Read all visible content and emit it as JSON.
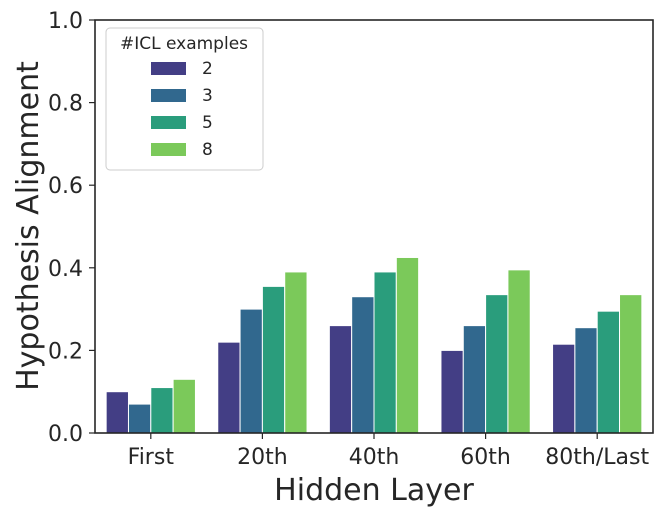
{
  "chart_data": {
    "type": "bar",
    "title": "",
    "xlabel": "Hidden Layer",
    "ylabel": "Hypothesis Alignment",
    "categories": [
      "First",
      "20th",
      "40th",
      "60th",
      "80th/Last"
    ],
    "ylim": [
      0,
      1.0
    ],
    "yticks": [
      "0.0",
      "0.2",
      "0.4",
      "0.6",
      "0.8",
      "1.0"
    ],
    "grid": false,
    "legend": {
      "title": "#ICL examples",
      "placement": "top-left"
    },
    "series": [
      {
        "name": "2",
        "color": "#433e85",
        "values": [
          0.1,
          0.22,
          0.26,
          0.2,
          0.215
        ]
      },
      {
        "name": "3",
        "color": "#31688e",
        "values": [
          0.07,
          0.3,
          0.33,
          0.26,
          0.255
        ]
      },
      {
        "name": "5",
        "color": "#2a9d7c",
        "values": [
          0.11,
          0.355,
          0.39,
          0.335,
          0.295
        ]
      },
      {
        "name": "8",
        "color": "#7bc95a",
        "values": [
          0.13,
          0.39,
          0.425,
          0.395,
          0.335
        ]
      }
    ]
  }
}
